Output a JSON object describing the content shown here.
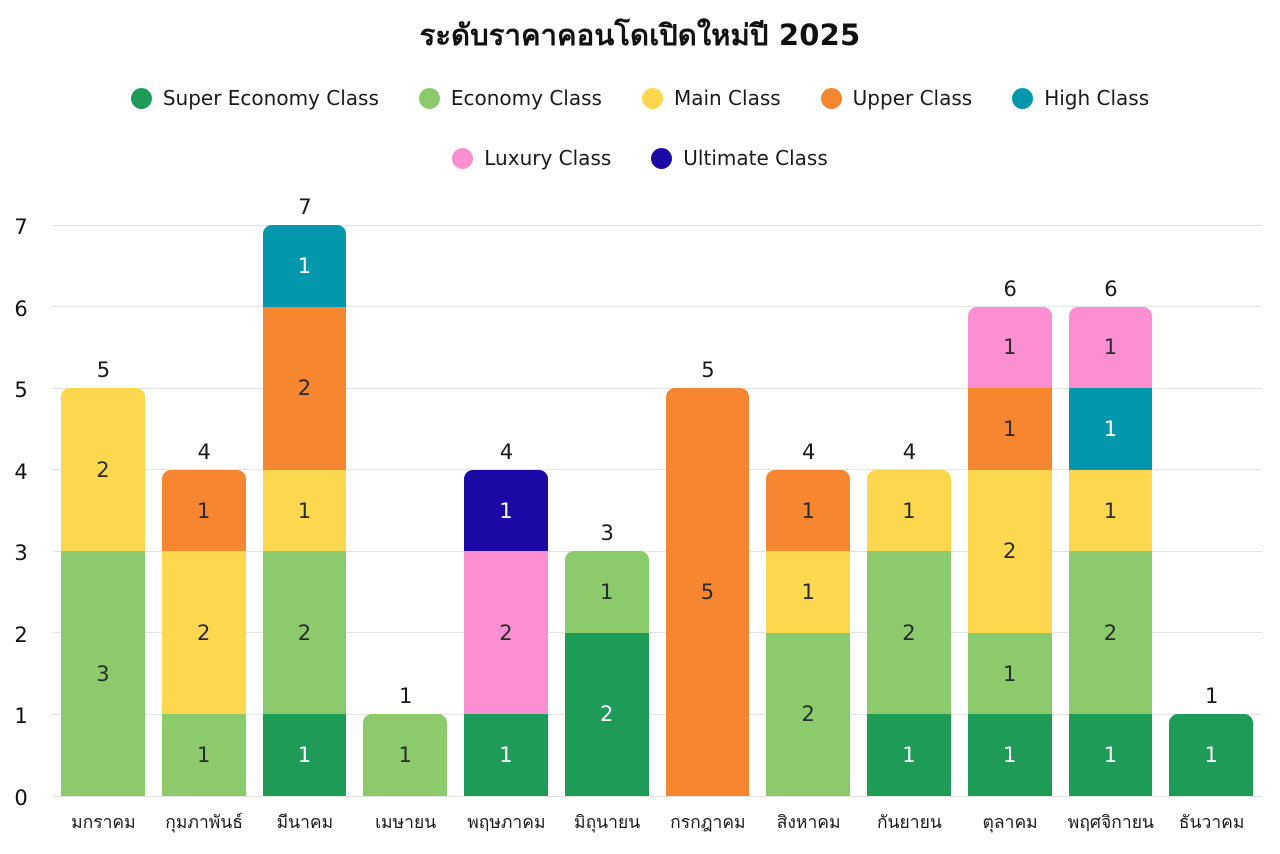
{
  "title": "ระดับบราคาคอนโดเปิดใหม่ปี 2025",
  "legend": {
    "rows": [
      5,
      2
    ]
  },
  "chart_data": {
    "type": "bar",
    "stacked": true,
    "title": "ระดับราคาคอนโดเปิดใหม่ปี 2025",
    "categories": [
      "มกราคม",
      "กุมภาพันธ์",
      "มีนาคม",
      "เมษายน",
      "พฤษภาคม",
      "มิถุนายน",
      "กรกฎาคม",
      "สิงหาคม",
      "กันยายน",
      "ตุลาคม",
      "พฤศจิกายน",
      "ธันวาคม"
    ],
    "series": [
      {
        "name": "Super Economy Class",
        "color": "#1F9B58",
        "label_color": "#ffffff",
        "values": [
          0,
          0,
          1,
          0,
          1,
          2,
          0,
          0,
          1,
          1,
          1,
          1
        ]
      },
      {
        "name": "Economy Class",
        "color": "#8CCB6B",
        "label_color": "#2b2b2b",
        "values": [
          3,
          1,
          2,
          1,
          0,
          1,
          0,
          2,
          2,
          1,
          2,
          0
        ]
      },
      {
        "name": "Main Class",
        "color": "#FDD84E",
        "label_color": "#2b2b2b",
        "values": [
          2,
          2,
          1,
          0,
          0,
          0,
          0,
          1,
          1,
          2,
          1,
          0
        ]
      },
      {
        "name": "Upper Class",
        "color": "#F6862F",
        "label_color": "#2b2b2b",
        "values": [
          0,
          1,
          2,
          0,
          0,
          0,
          5,
          1,
          0,
          1,
          0,
          0
        ]
      },
      {
        "name": "High Class",
        "color": "#0297AD",
        "label_color": "#ffffff",
        "values": [
          0,
          0,
          1,
          0,
          0,
          0,
          0,
          0,
          0,
          0,
          1,
          0
        ]
      },
      {
        "name": "Luxury Class",
        "color": "#FC8FD1",
        "label_color": "#2b2b2b",
        "values": [
          0,
          0,
          0,
          0,
          2,
          0,
          0,
          0,
          0,
          1,
          1,
          0
        ]
      },
      {
        "name": "Ultimate Class",
        "color": "#1B09A5",
        "label_color": "#ffffff",
        "values": [
          0,
          0,
          0,
          0,
          1,
          0,
          0,
          0,
          0,
          0,
          0,
          0
        ]
      }
    ],
    "totals": [
      5,
      4,
      7,
      1,
      4,
      3,
      5,
      4,
      4,
      6,
      6,
      1
    ],
    "xlabel": "",
    "ylabel": "",
    "ylim": [
      0,
      7
    ],
    "yticks": [
      0,
      1,
      2,
      3,
      4,
      5,
      6,
      7
    ],
    "grid": true,
    "legend_position": "top"
  },
  "colors": {
    "grid": "#e3e3e3",
    "axis_text": "#111111",
    "total_text": "#1a1a1a"
  }
}
